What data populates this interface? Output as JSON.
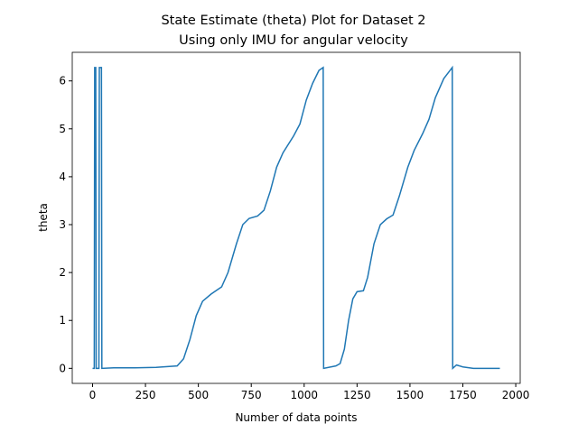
{
  "chart_data": {
    "type": "line",
    "title": [
      "State Estimate (theta) Plot for Dataset 2",
      "Using only IMU for angular velocity"
    ],
    "x_label": "Number of data points",
    "y_label": "theta",
    "color": "#1f77b4",
    "x": [
      0,
      8,
      10,
      15,
      17,
      30,
      32,
      42,
      44,
      100,
      200,
      300,
      400,
      430,
      460,
      490,
      520,
      560,
      610,
      640,
      680,
      710,
      740,
      780,
      810,
      840,
      870,
      900,
      950,
      980,
      1010,
      1040,
      1070,
      1090,
      1092,
      1150,
      1170,
      1190,
      1210,
      1230,
      1250,
      1280,
      1300,
      1330,
      1360,
      1390,
      1420,
      1450,
      1490,
      1520,
      1560,
      1590,
      1620,
      1660,
      1700,
      1702,
      1720,
      1750,
      1800,
      1925
    ],
    "values": [
      0,
      0,
      6.28,
      6.28,
      0,
      0,
      6.28,
      6.28,
      0,
      0.01,
      0.01,
      0.02,
      0.05,
      0.2,
      0.6,
      1.1,
      1.4,
      1.55,
      1.7,
      2.0,
      2.6,
      3.0,
      3.13,
      3.18,
      3.3,
      3.7,
      4.2,
      4.5,
      4.85,
      5.1,
      5.6,
      5.95,
      6.22,
      6.28,
      0,
      0.05,
      0.1,
      0.4,
      1.0,
      1.45,
      1.6,
      1.62,
      1.9,
      2.6,
      3.0,
      3.12,
      3.2,
      3.6,
      4.2,
      4.55,
      4.9,
      5.2,
      5.65,
      6.05,
      6.28,
      0,
      0.07,
      0.03,
      0,
      0
    ],
    "xlim": [
      -96,
      2021
    ],
    "ylim": [
      -0.314,
      6.597
    ],
    "xticks": [
      0,
      250,
      500,
      750,
      1000,
      1250,
      1500,
      1750,
      2000
    ],
    "yticks": [
      0,
      1,
      2,
      3,
      4,
      5,
      6
    ]
  }
}
